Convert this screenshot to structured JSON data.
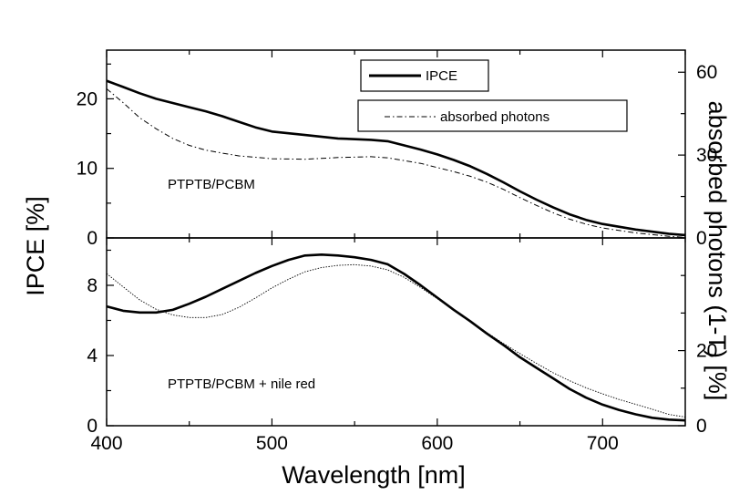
{
  "chart_data": [
    {
      "type": "line",
      "panel": "top",
      "xlim": [
        400,
        750
      ],
      "ylim_left": [
        0,
        27
      ],
      "ylim_right": [
        0,
        68
      ],
      "left_ticks": [
        0,
        10,
        20
      ],
      "right_ticks": [
        0,
        30,
        60
      ],
      "annotation": "PTPTB/PCBM",
      "legend": [
        "IPCE",
        "absorbed photons"
      ],
      "series": [
        {
          "name": "IPCE",
          "axis": "left",
          "style": "solid-thick",
          "x": [
            400,
            410,
            420,
            430,
            440,
            450,
            460,
            470,
            480,
            490,
            500,
            520,
            540,
            560,
            570,
            580,
            590,
            600,
            610,
            620,
            630,
            640,
            650,
            660,
            670,
            680,
            690,
            700,
            720,
            740,
            750
          ],
          "y": [
            22.6,
            21.7,
            20.8,
            20.0,
            19.4,
            18.8,
            18.2,
            17.5,
            16.7,
            15.9,
            15.3,
            14.8,
            14.3,
            14.1,
            13.9,
            13.3,
            12.7,
            12.0,
            11.2,
            10.3,
            9.2,
            8.0,
            6.7,
            5.5,
            4.4,
            3.4,
            2.6,
            2.0,
            1.2,
            0.6,
            0.4
          ]
        },
        {
          "name": "absorbed photons",
          "axis": "right",
          "style": "dash-dot",
          "x": [
            400,
            410,
            420,
            430,
            440,
            450,
            460,
            470,
            480,
            500,
            520,
            540,
            560,
            570,
            580,
            590,
            600,
            610,
            620,
            630,
            640,
            650,
            660,
            670,
            680,
            690,
            700,
            720,
            740,
            750
          ],
          "y": [
            54.0,
            49.0,
            43.5,
            39.5,
            36.0,
            33.5,
            31.8,
            30.7,
            29.7,
            28.7,
            28.5,
            29.1,
            29.4,
            29.0,
            28.0,
            27.0,
            25.5,
            24.0,
            22.3,
            20.2,
            17.6,
            14.6,
            11.8,
            9.1,
            6.8,
            5.0,
            3.6,
            1.8,
            0.6,
            0.2
          ]
        }
      ]
    },
    {
      "type": "line",
      "panel": "bottom",
      "xlim": [
        400,
        750
      ],
      "ylim_left": [
        0,
        10.7
      ],
      "ylim_right": [
        0,
        50
      ],
      "left_ticks": [
        0,
        4,
        8
      ],
      "right_ticks": [
        0,
        20
      ],
      "x_ticks": [
        400,
        500,
        600,
        700
      ],
      "annotation": "PTPTB/PCBM + nile red",
      "series": [
        {
          "name": "IPCE",
          "axis": "left",
          "style": "solid-thick",
          "x": [
            400,
            410,
            420,
            430,
            440,
            450,
            460,
            470,
            480,
            490,
            500,
            510,
            520,
            530,
            540,
            550,
            560,
            570,
            580,
            590,
            600,
            610,
            620,
            630,
            640,
            650,
            660,
            670,
            680,
            690,
            700,
            710,
            720,
            730,
            740,
            750
          ],
          "y": [
            6.8,
            6.55,
            6.45,
            6.45,
            6.6,
            6.95,
            7.35,
            7.8,
            8.25,
            8.7,
            9.1,
            9.45,
            9.7,
            9.75,
            9.7,
            9.6,
            9.45,
            9.2,
            8.65,
            8.0,
            7.3,
            6.6,
            5.95,
            5.25,
            4.6,
            3.9,
            3.3,
            2.7,
            2.1,
            1.6,
            1.2,
            0.9,
            0.65,
            0.45,
            0.35,
            0.3
          ]
        },
        {
          "name": "absorbed photons",
          "axis": "right",
          "style": "dotted-thin",
          "x": [
            400,
            410,
            420,
            430,
            440,
            450,
            460,
            470,
            480,
            490,
            500,
            510,
            520,
            530,
            540,
            550,
            560,
            570,
            580,
            590,
            600,
            610,
            620,
            630,
            640,
            650,
            660,
            670,
            680,
            690,
            700,
            710,
            720,
            730,
            740,
            750
          ],
          "y": [
            40.5,
            37.0,
            33.5,
            31.0,
            29.5,
            28.8,
            28.8,
            29.6,
            31.5,
            34.0,
            36.7,
            39.0,
            41.0,
            42.1,
            42.7,
            42.9,
            42.5,
            41.5,
            39.5,
            36.8,
            33.8,
            30.7,
            27.8,
            24.8,
            21.9,
            19.2,
            16.6,
            14.1,
            12.0,
            10.1,
            8.5,
            7.0,
            5.7,
            4.4,
            3.0,
            2.3
          ]
        }
      ]
    }
  ],
  "axes": {
    "xlabel": "Wavelength [nm]",
    "ylabel_left": "IPCE [%]",
    "ylabel_right": "absorbed photons (1-T) [%]"
  },
  "colors": {
    "ipce": "#000000",
    "absorbed": "#000000",
    "frame": "#000000"
  }
}
